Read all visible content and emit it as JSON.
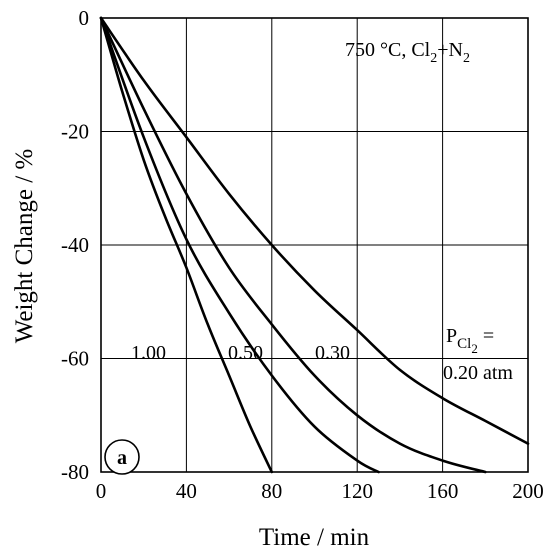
{
  "chart_data": {
    "type": "line",
    "xlabel": "Time / min",
    "ylabel": "Weight Change / %",
    "xlim": [
      0,
      200
    ],
    "ylim": [
      -80,
      0
    ],
    "xticks": [
      0,
      40,
      80,
      120,
      160,
      200
    ],
    "yticks": [
      0,
      -20,
      -40,
      -60,
      -80
    ],
    "grid": true,
    "annotation": "750 °C, Cl2+N2",
    "panel_label": "a",
    "pressure_label": "PCl2 =",
    "series": [
      {
        "label": "1.00",
        "x": [
          0,
          10,
          20,
          30,
          40,
          50,
          60,
          70,
          80
        ],
        "y": [
          0,
          -13,
          -25,
          -35,
          -44,
          -54,
          -63,
          -72,
          -80
        ]
      },
      {
        "label": "0.50",
        "x": [
          0,
          20,
          40,
          60,
          80,
          100,
          120,
          130
        ],
        "y": [
          0,
          -21,
          -39,
          -52,
          -63,
          -72,
          -78,
          -80
        ]
      },
      {
        "label": "0.30",
        "x": [
          0,
          20,
          40,
          60,
          80,
          100,
          120,
          140,
          160,
          180
        ],
        "y": [
          0,
          -16,
          -31,
          -44,
          -54,
          -63,
          -70,
          -75,
          -78,
          -80
        ]
      },
      {
        "label": "0.20 atm",
        "x": [
          0,
          20,
          40,
          60,
          80,
          100,
          120,
          140,
          160,
          180,
          200
        ],
        "y": [
          0,
          -11,
          -21,
          -31,
          -40,
          -48,
          -55,
          -62,
          -67,
          -71,
          -75
        ]
      }
    ]
  }
}
